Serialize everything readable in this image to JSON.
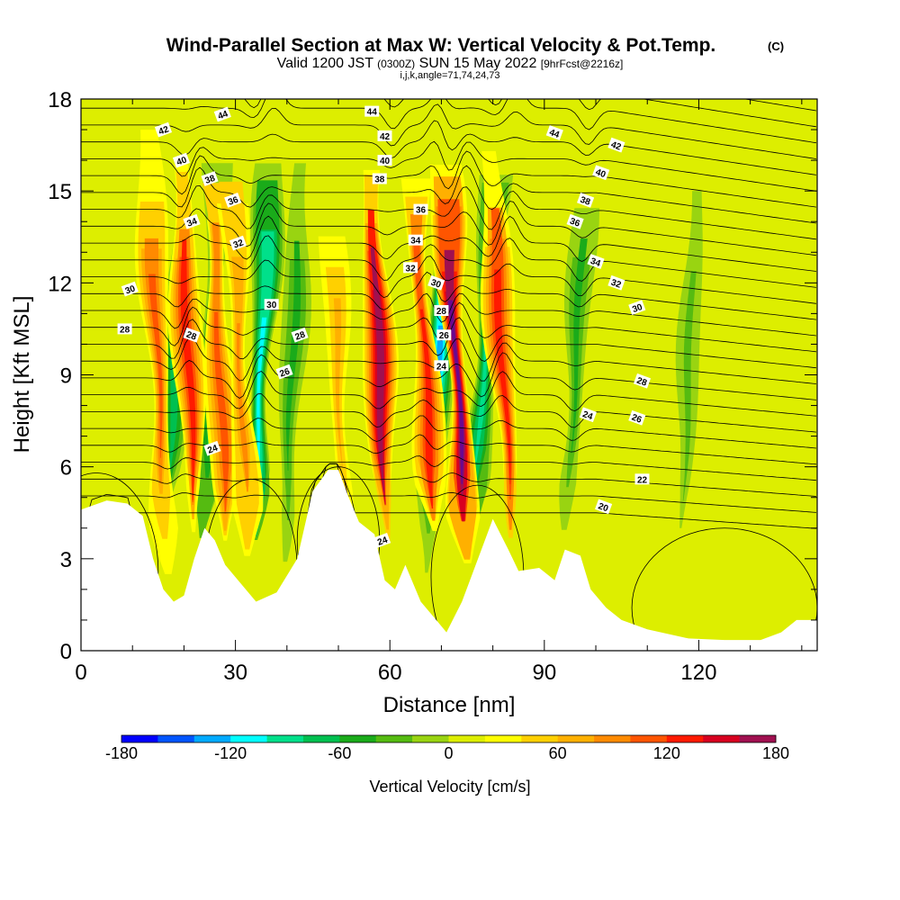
{
  "title": {
    "main": "Wind-Parallel Section at Max W: Vertical Velocity & Pot.Temp.",
    "copyright": "(C)",
    "valid_prefix": "Valid 1200 JST",
    "valid_small": "(0300Z)",
    "valid_date": "SUN 15 May 2022",
    "forecast": "[9hrFcst@2216z]",
    "indices": "i,j,k,angle=71,74,24,73"
  },
  "chart_data": {
    "type": "heatmap",
    "xlabel": "Distance [nm]",
    "ylabel": "Height [Kft MSL]",
    "xlim": [
      0,
      143
    ],
    "ylim": [
      0,
      18
    ],
    "xticks": [
      "0",
      "30",
      "60",
      "90",
      "120"
    ],
    "yticks": [
      "0",
      "3",
      "6",
      "9",
      "12",
      "15",
      "18"
    ],
    "field": "Vertical Velocity",
    "colorbar": {
      "label": "Vertical Velocity [cm/s]",
      "ticks": [
        "-180",
        "-120",
        "-60",
        "0",
        "60",
        "120",
        "180"
      ],
      "levels": [
        -180,
        -160,
        -140,
        -120,
        -100,
        -80,
        -60,
        -40,
        -20,
        0,
        20,
        40,
        60,
        80,
        100,
        120,
        140,
        160,
        180
      ],
      "colors": [
        "#0000ff",
        "#0055ff",
        "#00aaff",
        "#00ffff",
        "#00e08a",
        "#00c050",
        "#1aab1a",
        "#55bb11",
        "#99d411",
        "#ddee00",
        "#ffff00",
        "#ffd000",
        "#ffb000",
        "#ff8a00",
        "#ff5500",
        "#ff1a00",
        "#d80020",
        "#a01050",
        "#6a0890"
      ]
    },
    "updrafts": [
      {
        "x": 15,
        "peak": 110
      },
      {
        "x": 21,
        "peak": 120
      },
      {
        "x": 27,
        "peak": 100
      },
      {
        "x": 31,
        "peak": 90
      },
      {
        "x": 50,
        "peak": 70
      },
      {
        "x": 58,
        "peak": 170
      },
      {
        "x": 67,
        "peak": 130
      },
      {
        "x": 73,
        "peak": 180
      },
      {
        "x": 82,
        "peak": 120
      }
    ],
    "downdrafts": [
      {
        "x": 18,
        "peak": -80
      },
      {
        "x": 25,
        "peak": -90
      },
      {
        "x": 35,
        "peak": -130
      },
      {
        "x": 41,
        "peak": -70
      },
      {
        "x": 69,
        "peak": -140
      },
      {
        "x": 78,
        "peak": -110
      },
      {
        "x": 96,
        "peak": -70
      },
      {
        "x": 118,
        "peak": -40
      }
    ],
    "terrain_top_kft": [
      {
        "x": 0,
        "h": 4.6
      },
      {
        "x": 5,
        "h": 4.9
      },
      {
        "x": 9,
        "h": 4.8
      },
      {
        "x": 12,
        "h": 4.4
      },
      {
        "x": 14,
        "h": 3.0
      },
      {
        "x": 16,
        "h": 2.0
      },
      {
        "x": 18,
        "h": 1.6
      },
      {
        "x": 20,
        "h": 1.8
      },
      {
        "x": 22,
        "h": 3.0
      },
      {
        "x": 24,
        "h": 4.0
      },
      {
        "x": 26,
        "h": 3.6
      },
      {
        "x": 28,
        "h": 2.8
      },
      {
        "x": 30,
        "h": 2.4
      },
      {
        "x": 34,
        "h": 1.6
      },
      {
        "x": 38,
        "h": 1.9
      },
      {
        "x": 42,
        "h": 3.0
      },
      {
        "x": 45,
        "h": 5.2
      },
      {
        "x": 48,
        "h": 5.9
      },
      {
        "x": 50,
        "h": 5.9
      },
      {
        "x": 52,
        "h": 5.0
      },
      {
        "x": 54,
        "h": 4.2
      },
      {
        "x": 57,
        "h": 3.8
      },
      {
        "x": 59,
        "h": 2.3
      },
      {
        "x": 61,
        "h": 2.0
      },
      {
        "x": 63,
        "h": 2.8
      },
      {
        "x": 66,
        "h": 1.6
      },
      {
        "x": 69,
        "h": 1.0
      },
      {
        "x": 71,
        "h": 0.6
      },
      {
        "x": 74,
        "h": 1.6
      },
      {
        "x": 78,
        "h": 3.4
      },
      {
        "x": 80,
        "h": 4.3
      },
      {
        "x": 83,
        "h": 3.3
      },
      {
        "x": 85,
        "h": 2.6
      },
      {
        "x": 89,
        "h": 2.7
      },
      {
        "x": 92,
        "h": 2.3
      },
      {
        "x": 94,
        "h": 3.3
      },
      {
        "x": 97,
        "h": 3.1
      },
      {
        "x": 99,
        "h": 2.0
      },
      {
        "x": 102,
        "h": 1.4
      },
      {
        "x": 105,
        "h": 1.0
      },
      {
        "x": 110,
        "h": 0.7
      },
      {
        "x": 118,
        "h": 0.4
      },
      {
        "x": 125,
        "h": 0.35
      },
      {
        "x": 132,
        "h": 0.35
      },
      {
        "x": 136,
        "h": 0.6
      },
      {
        "x": 139,
        "h": 1.0
      },
      {
        "x": 143,
        "h": 1.0
      }
    ],
    "contour_field": "Pot.Temp.",
    "contour_labels": [
      {
        "text": "44",
        "x": 27.5,
        "y": 17.5
      },
      {
        "text": "44",
        "x": 56.5,
        "y": 17.6
      },
      {
        "text": "44",
        "x": 92,
        "y": 16.9
      },
      {
        "text": "42",
        "x": 16,
        "y": 17.0
      },
      {
        "text": "42",
        "x": 59,
        "y": 16.8
      },
      {
        "text": "42",
        "x": 104,
        "y": 16.5
      },
      {
        "text": "40",
        "x": 19.5,
        "y": 16.0
      },
      {
        "text": "40",
        "x": 59,
        "y": 16.0
      },
      {
        "text": "40",
        "x": 101,
        "y": 15.6
      },
      {
        "text": "38",
        "x": 25,
        "y": 15.4
      },
      {
        "text": "38",
        "x": 58,
        "y": 15.4
      },
      {
        "text": "38",
        "x": 98,
        "y": 14.7
      },
      {
        "text": "36",
        "x": 29.5,
        "y": 14.7
      },
      {
        "text": "36",
        "x": 66,
        "y": 14.4
      },
      {
        "text": "36",
        "x": 96,
        "y": 14.0
      },
      {
        "text": "34",
        "x": 21.5,
        "y": 14.0
      },
      {
        "text": "34",
        "x": 65,
        "y": 13.4
      },
      {
        "text": "34",
        "x": 100,
        "y": 12.7
      },
      {
        "text": "32",
        "x": 30.5,
        "y": 13.3
      },
      {
        "text": "32",
        "x": 64,
        "y": 12.5
      },
      {
        "text": "32",
        "x": 104,
        "y": 12.0
      },
      {
        "text": "30",
        "x": 9.5,
        "y": 11.8
      },
      {
        "text": "30",
        "x": 37,
        "y": 11.3
      },
      {
        "text": "30",
        "x": 69,
        "y": 12.0
      },
      {
        "text": "30",
        "x": 108,
        "y": 11.2
      },
      {
        "text": "28",
        "x": 8.5,
        "y": 10.5
      },
      {
        "text": "28",
        "x": 21.5,
        "y": 10.3
      },
      {
        "text": "28",
        "x": 42.5,
        "y": 10.3
      },
      {
        "text": "28",
        "x": 70,
        "y": 11.1
      },
      {
        "text": "28",
        "x": 109,
        "y": 8.8
      },
      {
        "text": "26",
        "x": 39.5,
        "y": 9.1
      },
      {
        "text": "26",
        "x": 70.5,
        "y": 10.3
      },
      {
        "text": "26",
        "x": 108,
        "y": 7.6
      },
      {
        "text": "24",
        "x": 25.5,
        "y": 6.6
      },
      {
        "text": "24",
        "x": 70,
        "y": 9.3
      },
      {
        "text": "24",
        "x": 98.5,
        "y": 7.7
      },
      {
        "text": "24",
        "x": 58.5,
        "y": 3.6
      },
      {
        "text": "22",
        "x": 109,
        "y": 5.6
      },
      {
        "text": "20",
        "x": 101.5,
        "y": 4.7
      }
    ]
  }
}
